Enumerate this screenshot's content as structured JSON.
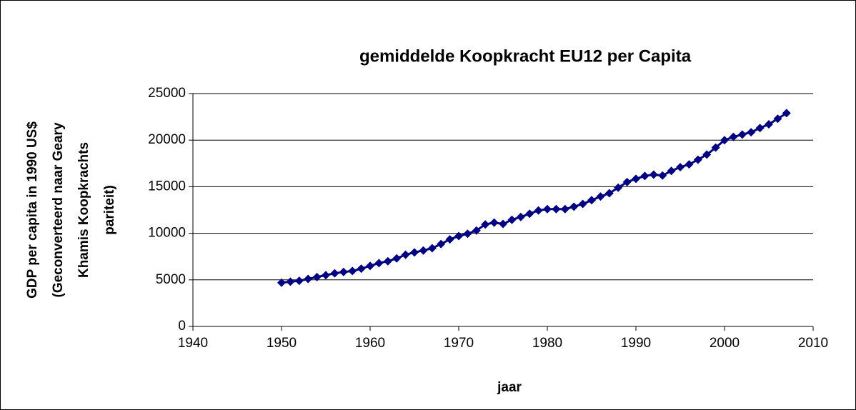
{
  "chart_data": {
    "type": "line",
    "title": "gemiddelde Koopkracht EU12 per Capita",
    "xlabel": "jaar",
    "ylabel": [
      "GDP per capita in 1990 US$",
      "(Geconverteerd naar Geary",
      "Khamis Koopkrachts",
      "pariteit)"
    ],
    "x": [
      1950,
      1951,
      1952,
      1953,
      1954,
      1955,
      1956,
      1957,
      1958,
      1959,
      1960,
      1961,
      1962,
      1963,
      1964,
      1965,
      1966,
      1967,
      1968,
      1969,
      1970,
      1971,
      1972,
      1973,
      1974,
      1975,
      1976,
      1977,
      1978,
      1979,
      1980,
      1981,
      1982,
      1983,
      1984,
      1985,
      1986,
      1987,
      1988,
      1989,
      1990,
      1991,
      1992,
      1993,
      1994,
      1995,
      1996,
      1997,
      1998,
      1999,
      2000,
      2001,
      2002,
      2003,
      2004,
      2005,
      2006,
      2007
    ],
    "values": [
      4700,
      4800,
      4900,
      5100,
      5300,
      5500,
      5700,
      5850,
      5950,
      6200,
      6500,
      6800,
      7000,
      7300,
      7700,
      7950,
      8150,
      8400,
      8850,
      9350,
      9700,
      9950,
      10300,
      10950,
      11150,
      11000,
      11450,
      11750,
      12100,
      12450,
      12600,
      12600,
      12600,
      12850,
      13150,
      13550,
      13950,
      14300,
      14900,
      15500,
      15850,
      16150,
      16300,
      16200,
      16700,
      17100,
      17400,
      17900,
      18450,
      19200,
      20000,
      20350,
      20600,
      20850,
      21300,
      21700,
      22300,
      22900
    ],
    "color": "#000080",
    "xlim": [
      1940,
      2010
    ],
    "xticks": [
      1940,
      1950,
      1960,
      1970,
      1980,
      1990,
      2000,
      2010
    ],
    "ylim": [
      0,
      25000
    ],
    "yticks": [
      0,
      5000,
      10000,
      15000,
      20000,
      25000
    ],
    "grid": true
  }
}
